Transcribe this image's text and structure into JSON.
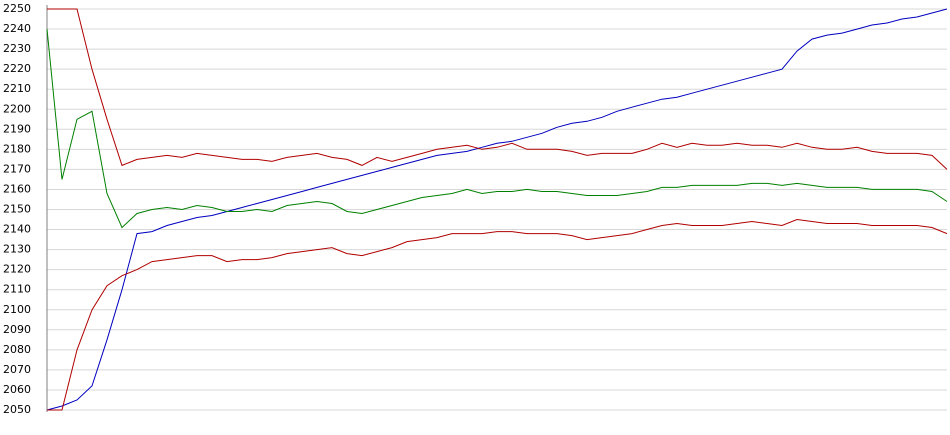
{
  "chart_data": {
    "type": "line",
    "ylim": [
      2050,
      2250
    ],
    "yticks": [
      2050,
      2060,
      2070,
      2080,
      2090,
      2100,
      2110,
      2120,
      2130,
      2140,
      2150,
      2160,
      2170,
      2180,
      2190,
      2200,
      2210,
      2220,
      2230,
      2240,
      2250
    ],
    "grid": true,
    "series": [
      {
        "color": "#0000c0",
        "values": [
          2050,
          2052,
          2055,
          2062,
          2085,
          2110,
          2138,
          2139,
          2142,
          2144,
          2146,
          2147,
          2149,
          2151,
          2153,
          2155,
          2157,
          2159,
          2161,
          2163,
          2165,
          2167,
          2169,
          2171,
          2173,
          2175,
          2177,
          2178,
          2179,
          2181,
          2183,
          2184,
          2186,
          2188,
          2191,
          2193,
          2194,
          2196,
          2199,
          2201,
          2203,
          2205,
          2206,
          2208,
          2210,
          2212,
          2214,
          2216,
          2218,
          2220,
          2229,
          2235,
          2237,
          2238,
          2240,
          2242,
          2243,
          2245,
          2246,
          2248,
          2250
        ]
      },
      {
        "color": "#b00000",
        "values": [
          2250,
          2250,
          2250,
          2220,
          2195,
          2172,
          2175,
          2176,
          2177,
          2176,
          2178,
          2177,
          2176,
          2175,
          2175,
          2174,
          2176,
          2177,
          2178,
          2176,
          2175,
          2172,
          2176,
          2174,
          2176,
          2178,
          2180,
          2181,
          2182,
          2180,
          2181,
          2183,
          2180,
          2180,
          2180,
          2179,
          2177,
          2178,
          2178,
          2178,
          2180,
          2183,
          2181,
          2183,
          2182,
          2182,
          2183,
          2182,
          2182,
          2181,
          2183,
          2181,
          2180,
          2180,
          2181,
          2179,
          2178,
          2178,
          2178,
          2177,
          2170
        ]
      },
      {
        "color": "#008000",
        "values": [
          2240,
          2165,
          2195,
          2199,
          2158,
          2141,
          2148,
          2150,
          2151,
          2150,
          2152,
          2151,
          2149,
          2149,
          2150,
          2149,
          2152,
          2153,
          2154,
          2153,
          2149,
          2148,
          2150,
          2152,
          2154,
          2156,
          2157,
          2158,
          2160,
          2158,
          2159,
          2159,
          2160,
          2159,
          2159,
          2158,
          2157,
          2157,
          2157,
          2158,
          2159,
          2161,
          2161,
          2162,
          2162,
          2162,
          2162,
          2163,
          2163,
          2162,
          2163,
          2162,
          2161,
          2161,
          2161,
          2160,
          2160,
          2160,
          2160,
          2159,
          2154
        ]
      },
      {
        "color": "#b00000",
        "values": [
          2050,
          2050,
          2080,
          2100,
          2112,
          2117,
          2120,
          2124,
          2125,
          2126,
          2127,
          2127,
          2124,
          2125,
          2125,
          2126,
          2128,
          2129,
          2130,
          2131,
          2128,
          2127,
          2129,
          2131,
          2134,
          2135,
          2136,
          2138,
          2138,
          2138,
          2139,
          2139,
          2138,
          2138,
          2138,
          2137,
          2135,
          2136,
          2137,
          2138,
          2140,
          2142,
          2143,
          2142,
          2142,
          2142,
          2143,
          2144,
          2143,
          2142,
          2145,
          2144,
          2143,
          2143,
          2143,
          2142,
          2142,
          2142,
          2142,
          2141,
          2138
        ]
      }
    ]
  }
}
